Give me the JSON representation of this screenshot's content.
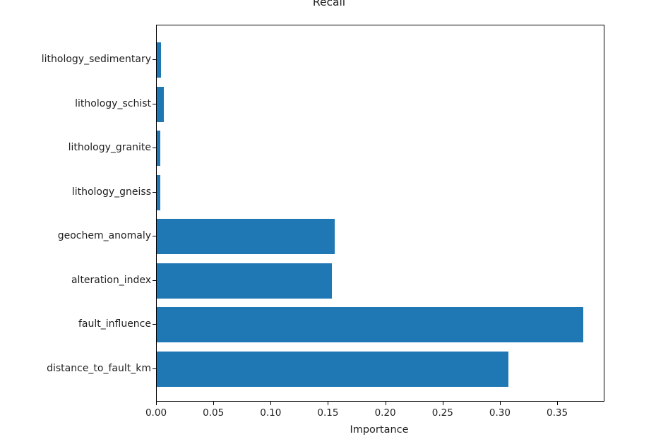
{
  "figure": {
    "background": "#ffffff",
    "text_color": "#1f1f1f"
  },
  "chart_data": {
    "type": "bar",
    "orientation": "horizontal",
    "title": "Recall",
    "xlabel": "Importance",
    "ylabel": "",
    "categories_top_to_bottom": [
      "lithology_sedimentary",
      "lithology_schist",
      "lithology_granite",
      "lithology_gneiss",
      "geochem_anomaly",
      "alteration_index",
      "fault_influence",
      "distance_to_fault_km"
    ],
    "values_top_to_bottom": [
      0.004,
      0.006,
      0.003,
      0.003,
      0.155,
      0.153,
      0.372,
      0.307
    ],
    "xlim": [
      0,
      0.39
    ],
    "xticks": [
      {
        "value": 0.0,
        "label": "0.00"
      },
      {
        "value": 0.05,
        "label": "0.05"
      },
      {
        "value": 0.1,
        "label": "0.10"
      },
      {
        "value": 0.15,
        "label": "0.15"
      },
      {
        "value": 0.2,
        "label": "0.20"
      },
      {
        "value": 0.25,
        "label": "0.25"
      },
      {
        "value": 0.3,
        "label": "0.30"
      },
      {
        "value": 0.35,
        "label": "0.35"
      }
    ],
    "bar_color": "#1f77b4",
    "grid": false,
    "legend": null
  }
}
